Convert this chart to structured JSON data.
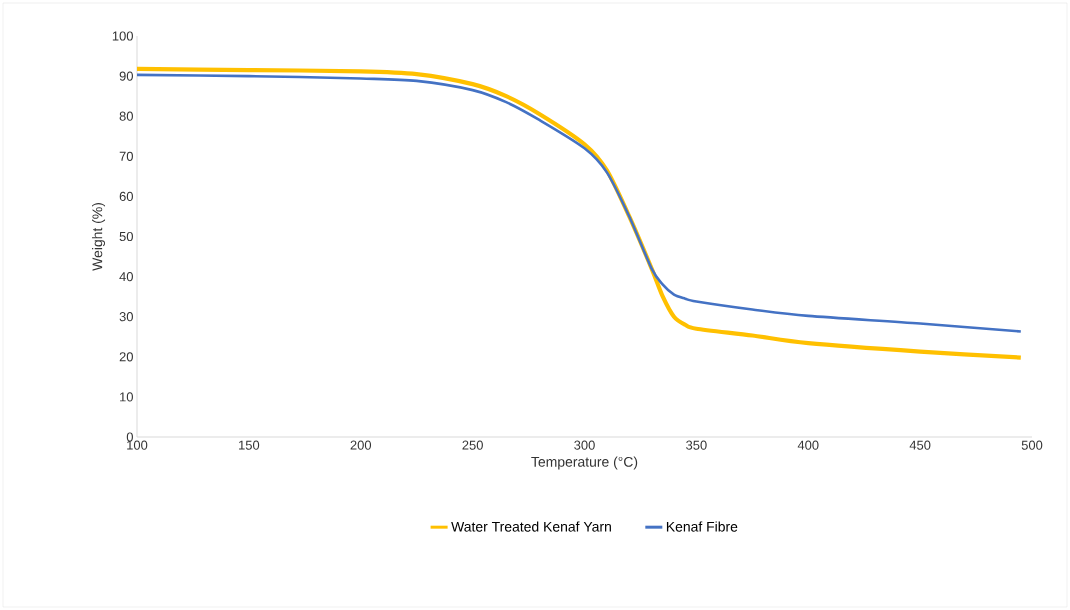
{
  "chart_data": {
    "type": "line",
    "xlabel": "Temperature (°C)",
    "ylabel": "Weight (%)",
    "xlim": [
      100,
      500
    ],
    "xticks": [
      100,
      150,
      200,
      250,
      300,
      350,
      400,
      450,
      500
    ],
    "ylim": [
      0,
      100
    ],
    "yticks": [
      0,
      10,
      20,
      30,
      40,
      50,
      60,
      70,
      80,
      90,
      100
    ],
    "grid": false,
    "legend": "bottom",
    "marker": "none",
    "line_style": "solid",
    "series": [
      {
        "name": "Water Treated Kenaf Yarn",
        "color": "#ffc000",
        "x": [
          100,
          150,
          200,
          225,
          250,
          265,
          280,
          300,
          310,
          320,
          330,
          335,
          340,
          345,
          350,
          375,
          400,
          450,
          495
        ],
        "values": [
          91.8,
          91.5,
          91.2,
          90.5,
          88,
          85,
          80.5,
          73,
          66.5,
          55,
          42,
          35,
          30,
          28,
          27,
          25.3,
          23.4,
          21.3,
          19.8
        ]
      },
      {
        "name": "Kenaf Fibre",
        "color": "#4472c4",
        "x": [
          100,
          150,
          200,
          225,
          250,
          265,
          280,
          300,
          310,
          320,
          330,
          335,
          340,
          345,
          350,
          375,
          400,
          450,
          495
        ],
        "values": [
          90.3,
          90,
          89.4,
          88.8,
          86.5,
          83.5,
          79,
          72,
          66,
          55,
          42,
          38,
          35.5,
          34.5,
          33.8,
          31.8,
          30.2,
          28.3,
          26.3
        ]
      }
    ]
  }
}
